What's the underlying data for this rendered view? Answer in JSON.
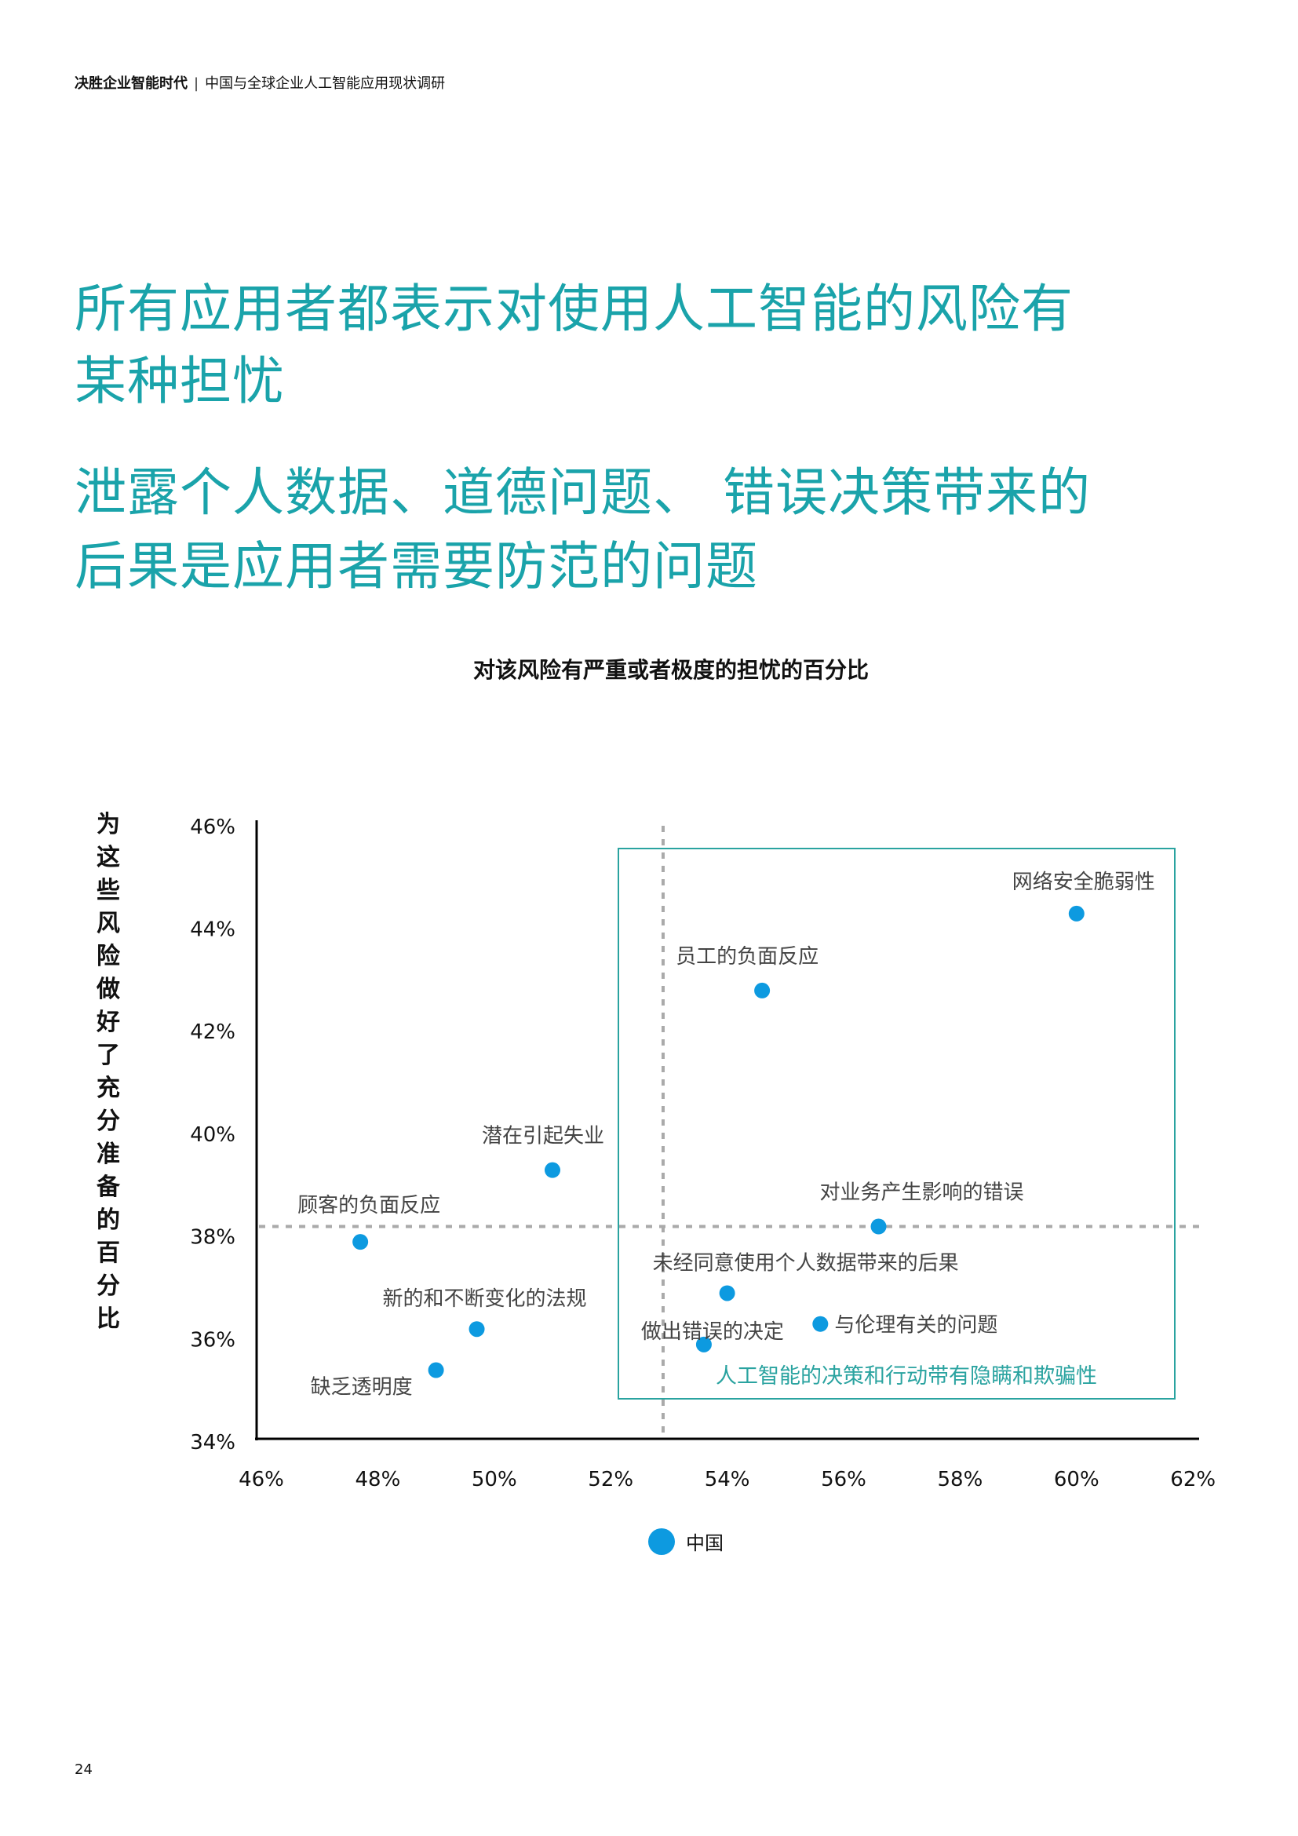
{
  "header": {
    "report_title": "决胜企业智能时代",
    "separator": "|",
    "subtitle": "中国与全球企业人工智能应用现状调研"
  },
  "headline": {
    "line1": "所有应用者都表示对使用人工智能的风险有",
    "line2": "某种担忧",
    "line3": "泄露个人数据、道德问题、 错误决策带来的",
    "line4": "后果是应用者需要防范的问题"
  },
  "colors": {
    "headline": "#1aa3aa",
    "point": "#0d9ae0",
    "highlight_box": "#2aa3a0",
    "reference_line": "#aaaaaa",
    "axis": "#000000",
    "label": "#444444"
  },
  "chart_data": {
    "type": "scatter",
    "title": "对该风险有严重或者极度的担忧的百分比",
    "xlabel": "对该风险有严重或者极度的担忧的百分比",
    "ylabel": "为这些风险做好了充分准备的百分比",
    "xlim": [
      46,
      62
    ],
    "ylim": [
      34,
      46
    ],
    "x_ticks": [
      "46%",
      "48%",
      "50%",
      "52%",
      "54%",
      "56%",
      "58%",
      "60%",
      "62%"
    ],
    "y_ticks": [
      "46%",
      "44%",
      "42%",
      "40%",
      "38%",
      "36%",
      "34%"
    ],
    "grid": false,
    "legend_position": "bottom",
    "series": [
      {
        "name": "中国",
        "points": [
          {
            "label": "网络安全脆弱性",
            "x": 60.0,
            "y": 44.3
          },
          {
            "label": "员工的负面反应",
            "x": 54.6,
            "y": 42.8
          },
          {
            "label": "潜在引起失业",
            "x": 51.0,
            "y": 39.3
          },
          {
            "label": "顾客的负面反应",
            "x": 47.7,
            "y": 37.9
          },
          {
            "label": "对业务产生影响的错误",
            "x": 56.6,
            "y": 38.2
          },
          {
            "label": "未经同意使用个人数据带来的后果",
            "x": 54.0,
            "y": 36.9
          },
          {
            "label": "与伦理有关的问题",
            "x": 55.6,
            "y": 36.3
          },
          {
            "label": "做出错误的决定",
            "x": 53.6,
            "y": 35.9
          },
          {
            "label": "新的和不断变化的法规",
            "x": 49.7,
            "y": 36.2
          },
          {
            "label": "缺乏透明度",
            "x": 49.0,
            "y": 35.4
          }
        ]
      }
    ],
    "reference_lines": {
      "vertical_x": 52.9,
      "horizontal_y": 38.2
    },
    "annotations": [
      {
        "text": "人工智能的决策和行动带有隐瞒和欺骗性",
        "type": "highlight-box",
        "x_range": [
          52.2,
          61.6
        ],
        "y_range": [
          35.1,
          45.7
        ]
      }
    ]
  },
  "legend": {
    "label": "中国"
  },
  "page_number": "24"
}
